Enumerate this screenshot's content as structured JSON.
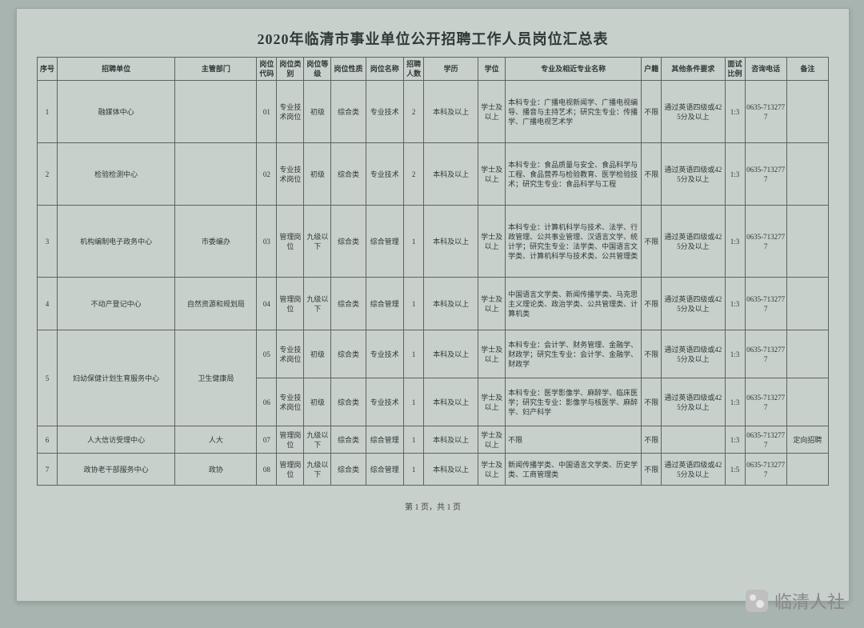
{
  "title": "2020年临清市事业单位公开招聘工作人员岗位汇总表",
  "footer": "第 1 页，共 1 页",
  "watermark": "临清人社",
  "columns": [
    {
      "key": "idx",
      "label": "序号",
      "w": 22
    },
    {
      "key": "unit",
      "label": "招聘单位",
      "w": 130
    },
    {
      "key": "dept",
      "label": "主管部门",
      "w": 90
    },
    {
      "key": "code",
      "label": "岗位代码",
      "w": 22
    },
    {
      "key": "cat",
      "label": "岗位类别",
      "w": 30
    },
    {
      "key": "grade",
      "label": "岗位等级",
      "w": 30
    },
    {
      "key": "nature",
      "label": "岗位性质",
      "w": 38
    },
    {
      "key": "pname",
      "label": "岗位名称",
      "w": 42
    },
    {
      "key": "num",
      "label": "招聘人数",
      "w": 22
    },
    {
      "key": "edu",
      "label": "学历",
      "w": 60
    },
    {
      "key": "degree",
      "label": "学位",
      "w": 30
    },
    {
      "key": "major",
      "label": "专业及相近专业名称",
      "w": 150
    },
    {
      "key": "hukou",
      "label": "户籍",
      "w": 22
    },
    {
      "key": "other",
      "label": "其他条件要求",
      "w": 70
    },
    {
      "key": "ratio",
      "label": "面试比例",
      "w": 22
    },
    {
      "key": "phone",
      "label": "咨询电话",
      "w": 46
    },
    {
      "key": "remark",
      "label": "备注",
      "w": 46
    }
  ],
  "rows": [
    {
      "idx": "1",
      "unit": "融媒体中心",
      "dept": "",
      "subrows": [
        {
          "code": "01",
          "cat": "专业技术岗位",
          "grade": "初级",
          "nature": "综合类",
          "pname": "专业技术",
          "num": "2",
          "edu": "本科及以上",
          "degree": "学士及以上",
          "major": "本科专业：广播电视新闻学、广播电视编导、播音与主持艺术；研究生专业：传播学、广播电视艺术学",
          "hukou": "不限",
          "other": "通过英语四级或425分及以上",
          "ratio": "1:3",
          "phone": "0635-7132777",
          "remark": ""
        }
      ]
    },
    {
      "idx": "2",
      "unit": "检验检测中心",
      "dept": "",
      "subrows": [
        {
          "code": "02",
          "cat": "专业技术岗位",
          "grade": "初级",
          "nature": "综合类",
          "pname": "专业技术",
          "num": "2",
          "edu": "本科及以上",
          "degree": "学士及以上",
          "major": "本科专业：食品质量与安全、食品科学与工程、食品营养与检验教育、医学检验技术；研究生专业：食品科学与工程",
          "hukou": "不限",
          "other": "通过英语四级或425分及以上",
          "ratio": "1:3",
          "phone": "0635-7132777",
          "remark": ""
        }
      ]
    },
    {
      "idx": "3",
      "unit": "机构编制电子政务中心",
      "dept": "市委编办",
      "subrows": [
        {
          "code": "03",
          "cat": "管理岗位",
          "grade": "九级以下",
          "nature": "综合类",
          "pname": "综合管理",
          "num": "1",
          "edu": "本科及以上",
          "degree": "学士及以上",
          "major": "本科专业：计算机科学与技术、法学、行政管理、公共事业管理、汉语言文学、统计学；研究生专业：法学类、中国语言文学类、计算机科学与技术类、公共管理类",
          "hukou": "不限",
          "other": "通过英语四级或425分及以上",
          "ratio": "1:3",
          "phone": "0635-7132777",
          "remark": ""
        }
      ]
    },
    {
      "idx": "4",
      "unit": "不动产登记中心",
      "dept": "自然资源和规划局",
      "subrows": [
        {
          "code": "04",
          "cat": "管理岗位",
          "grade": "九级以下",
          "nature": "综合类",
          "pname": "综合管理",
          "num": "1",
          "edu": "本科及以上",
          "degree": "学士及以上",
          "major": "中国语言文学类、新闻传播学类、马克思主义理论类、政治学类、公共管理类、计算机类",
          "hukou": "不限",
          "other": "通过英语四级或425分及以上",
          "ratio": "1:3",
          "phone": "0635-7132777",
          "remark": ""
        }
      ]
    },
    {
      "idx": "5",
      "unit": "妇幼保健计划生育服务中心",
      "dept": "卫生健康局",
      "subrows": [
        {
          "code": "05",
          "cat": "专业技术岗位",
          "grade": "初级",
          "nature": "综合类",
          "pname": "专业技术",
          "num": "1",
          "edu": "本科及以上",
          "degree": "学士及以上",
          "major": "本科专业：会计学、财务管理、金融学、财政学；研究生专业：会计学、金融学、财政学",
          "hukou": "不限",
          "other": "通过英语四级或425分及以上",
          "ratio": "1:3",
          "phone": "0635-7132777",
          "remark": ""
        },
        {
          "code": "06",
          "cat": "专业技术岗位",
          "grade": "初级",
          "nature": "综合类",
          "pname": "专业技术",
          "num": "1",
          "edu": "本科及以上",
          "degree": "学士及以上",
          "major": "本科专业：医学影像学、麻醉学、临床医学；研究生专业：影像学与核医学、麻醉学、妇产科学",
          "hukou": "不限",
          "other": "通过英语四级或425分及以上",
          "ratio": "1:3",
          "phone": "0635-7132777",
          "remark": ""
        }
      ]
    },
    {
      "idx": "6",
      "unit": "人大信访受理中心",
      "dept": "人大",
      "subrows": [
        {
          "code": "07",
          "cat": "管理岗位",
          "grade": "九级以下",
          "nature": "综合类",
          "pname": "综合管理",
          "num": "1",
          "edu": "本科及以上",
          "degree": "学士及以上",
          "major": "不限",
          "hukou": "不限",
          "other": "",
          "ratio": "1:3",
          "phone": "0635-7132777",
          "remark": "定向招聘"
        }
      ]
    },
    {
      "idx": "7",
      "unit": "政协老干部服务中心",
      "dept": "政协",
      "subrows": [
        {
          "code": "08",
          "cat": "管理岗位",
          "grade": "九级以下",
          "nature": "综合类",
          "pname": "综合管理",
          "num": "1",
          "edu": "本科及以上",
          "degree": "学士及以上",
          "major": "新闻传播学类、中国语言文学类、历史学类、工商管理类",
          "hukou": "不限",
          "other": "通过英语四级或425分及以上",
          "ratio": "1:5",
          "phone": "0635-7132777",
          "remark": ""
        }
      ]
    }
  ],
  "rowHeights": {
    "1": 78,
    "2": 78,
    "3": 90,
    "4": 66,
    "5": 60,
    "6": 34,
    "7": 40
  },
  "style": {
    "page_bg": "#c8d0cc",
    "body_bg": "#a8b4b0",
    "border": "#5a6460",
    "text": "#303838"
  }
}
